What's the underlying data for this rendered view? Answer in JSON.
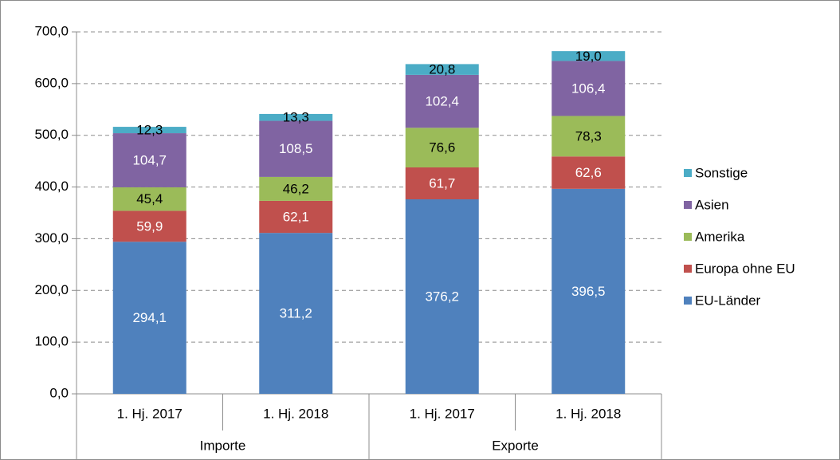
{
  "chart_data": {
    "type": "stacked_bar",
    "categories": [
      "1. Hj. 2017",
      "1. Hj. 2018",
      "1. Hj. 2017",
      "1. Hj. 2018"
    ],
    "groups": [
      "Importe",
      "Exporte"
    ],
    "series": [
      {
        "name": "EU-Länder",
        "color": "#4f81bd",
        "label_color": "#ffffff",
        "values": [
          294.1,
          311.2,
          376.2,
          396.5
        ],
        "value_labels": [
          "294,1",
          "311,2",
          "376,2",
          "396,5"
        ]
      },
      {
        "name": "Europa ohne EU",
        "color": "#c0504d",
        "label_color": "#ffffff",
        "values": [
          59.9,
          62.1,
          61.7,
          62.6
        ],
        "value_labels": [
          "59,9",
          "62,1",
          "61,7",
          "62,6"
        ]
      },
      {
        "name": "Amerika",
        "color": "#9bbb59",
        "label_color": "#000000",
        "values": [
          45.4,
          46.2,
          76.6,
          78.3
        ],
        "value_labels": [
          "45,4",
          "46,2",
          "76,6",
          "78,3"
        ]
      },
      {
        "name": "Asien",
        "color": "#8064a2",
        "label_color": "#ffffff",
        "values": [
          104.7,
          108.5,
          102.4,
          106.4
        ],
        "value_labels": [
          "104,7",
          "108,5",
          "102,4",
          "106,4"
        ]
      },
      {
        "name": "Sonstige",
        "color": "#4bacc6",
        "label_color": "#000000",
        "values": [
          12.3,
          13.3,
          20.8,
          19.0
        ],
        "value_labels": [
          "12,3",
          "13,3",
          "20,8",
          "19,0"
        ]
      }
    ],
    "ylim": [
      0,
      700
    ],
    "yticks": [
      {
        "value": 0,
        "label": "0,0"
      },
      {
        "value": 100,
        "label": "100,0"
      },
      {
        "value": 200,
        "label": "200,0"
      },
      {
        "value": 300,
        "label": "300,0"
      },
      {
        "value": 400,
        "label": "400,0"
      },
      {
        "value": 500,
        "label": "500,0"
      },
      {
        "value": 600,
        "label": "600,0"
      },
      {
        "value": 700,
        "label": "700,0"
      }
    ],
    "grid": true,
    "legend": "right"
  }
}
